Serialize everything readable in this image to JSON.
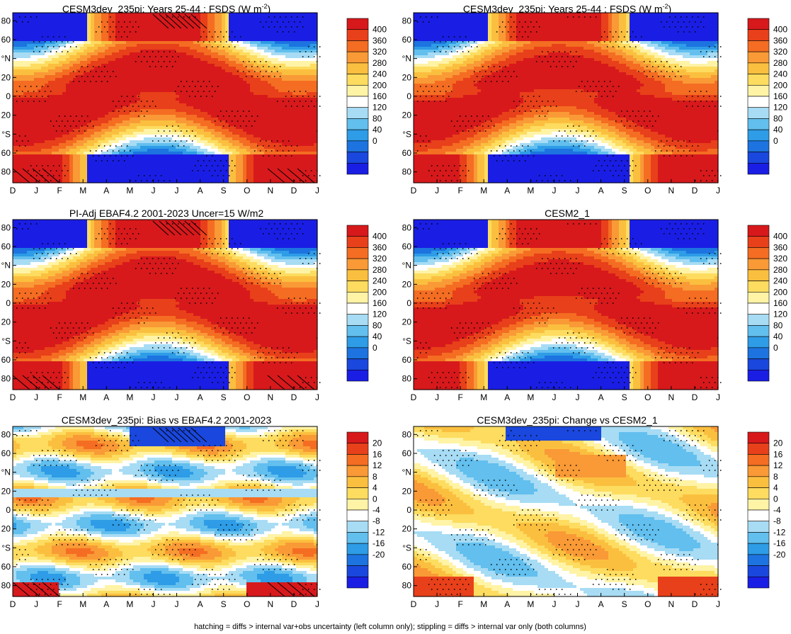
{
  "chart_data": [
    {
      "type": "heatmap",
      "title": "CESM3dev_235pi: Years 25-44 : FSDS (W m",
      "title_superscript": "-2",
      "title_suffix": ")",
      "kind": "abs",
      "x_ticks": [
        "D",
        "J",
        "F",
        "M",
        "A",
        "M",
        "J",
        "J",
        "A",
        "S",
        "O",
        "N",
        "D",
        "J"
      ],
      "y_ticks": [
        "80",
        "60",
        "°N",
        "20",
        "0",
        "20",
        "°S",
        "60",
        "80"
      ],
      "ylim": [
        -90,
        90
      ],
      "colorbar_levels": [
        "400",
        "360",
        "320",
        "280",
        "240",
        "200",
        "160",
        "120",
        "80",
        "40",
        "0"
      ],
      "stippling": true,
      "hatching": true
    },
    {
      "type": "heatmap",
      "title": "CESM3dev_235pi: Years 25-44 : FSDS (W m",
      "title_superscript": "-2",
      "title_suffix": ")",
      "kind": "abs",
      "x_ticks": [
        "D",
        "J",
        "F",
        "M",
        "A",
        "M",
        "J",
        "J",
        "A",
        "S",
        "O",
        "N",
        "D",
        "J"
      ],
      "y_ticks": [
        "80",
        "60",
        "°N",
        "20",
        "0",
        "20",
        "°S",
        "60",
        "80"
      ],
      "ylim": [
        -90,
        90
      ],
      "colorbar_levels": [
        "400",
        "360",
        "320",
        "280",
        "240",
        "200",
        "160",
        "120",
        "80",
        "40",
        "0"
      ],
      "stippling": true,
      "hatching": false
    },
    {
      "type": "heatmap",
      "title": "PI-Adj EBAF4.2 2001-2023 Uncer=15 W/m2",
      "title_superscript": "",
      "title_suffix": "",
      "kind": "abs",
      "x_ticks": [
        "D",
        "J",
        "F",
        "M",
        "A",
        "M",
        "J",
        "J",
        "A",
        "S",
        "O",
        "N",
        "D",
        "J"
      ],
      "y_ticks": [
        "80",
        "60",
        "°N",
        "20",
        "0",
        "20",
        "°S",
        "60",
        "80"
      ],
      "ylim": [
        -90,
        90
      ],
      "colorbar_levels": [
        "400",
        "360",
        "320",
        "280",
        "240",
        "200",
        "160",
        "120",
        "80",
        "40",
        "0"
      ],
      "stippling": true,
      "hatching": true
    },
    {
      "type": "heatmap",
      "title": "CESM2_1",
      "title_superscript": "",
      "title_suffix": "",
      "kind": "abs",
      "x_ticks": [
        "D",
        "J",
        "F",
        "M",
        "A",
        "M",
        "J",
        "J",
        "A",
        "S",
        "O",
        "N",
        "D",
        "J"
      ],
      "y_ticks": [
        "80",
        "60",
        "°N",
        "20",
        "0",
        "20",
        "°S",
        "60",
        "80"
      ],
      "ylim": [
        -90,
        90
      ],
      "colorbar_levels": [
        "400",
        "360",
        "320",
        "280",
        "240",
        "200",
        "160",
        "120",
        "80",
        "40",
        "0"
      ],
      "stippling": true,
      "hatching": false
    },
    {
      "type": "heatmap",
      "title": "CESM3dev_235pi: Bias vs EBAF4.2 2001-2023",
      "title_superscript": "",
      "title_suffix": "",
      "kind": "bias",
      "x_ticks": [
        "D",
        "J",
        "F",
        "M",
        "A",
        "M",
        "J",
        "J",
        "A",
        "S",
        "O",
        "N",
        "D",
        "J"
      ],
      "y_ticks": [
        "80",
        "60",
        "°N",
        "20",
        "0",
        "20",
        "°S",
        "60",
        "80"
      ],
      "ylim": [
        -90,
        90
      ],
      "colorbar_levels": [
        "20",
        "16",
        "12",
        "8",
        "4",
        "0",
        "-4",
        "-8",
        "-12",
        "-16",
        "-20"
      ],
      "stippling": true,
      "hatching": true
    },
    {
      "type": "heatmap",
      "title": "CESM3dev_235pi: Change vs CESM2_1",
      "title_superscript": "",
      "title_suffix": "",
      "kind": "change",
      "x_ticks": [
        "D",
        "J",
        "F",
        "M",
        "A",
        "M",
        "J",
        "J",
        "A",
        "S",
        "O",
        "N",
        "D",
        "J"
      ],
      "y_ticks": [
        "80",
        "60",
        "°N",
        "20",
        "0",
        "20",
        "°S",
        "60",
        "80"
      ],
      "ylim": [
        -90,
        90
      ],
      "colorbar_levels": [
        "20",
        "16",
        "12",
        "8",
        "4",
        "0",
        "-4",
        "-8",
        "-12",
        "-16",
        "-20"
      ],
      "stippling": true,
      "hatching": false
    }
  ],
  "colors": {
    "scale": [
      "#d7191c",
      "#e8401a",
      "#f46d22",
      "#f99a36",
      "#fbbf3f",
      "#fddc5f",
      "#fff3a6",
      "#ffffff",
      "#a7dcf4",
      "#62bfee",
      "#2e9ce6",
      "#1d73e0",
      "#1a47dd",
      "#1a1ee4"
    ]
  },
  "footer": "hatching = diffs > internal var+obs uncertainty (left column only); stippling = diffs > internal var only (both columns)"
}
